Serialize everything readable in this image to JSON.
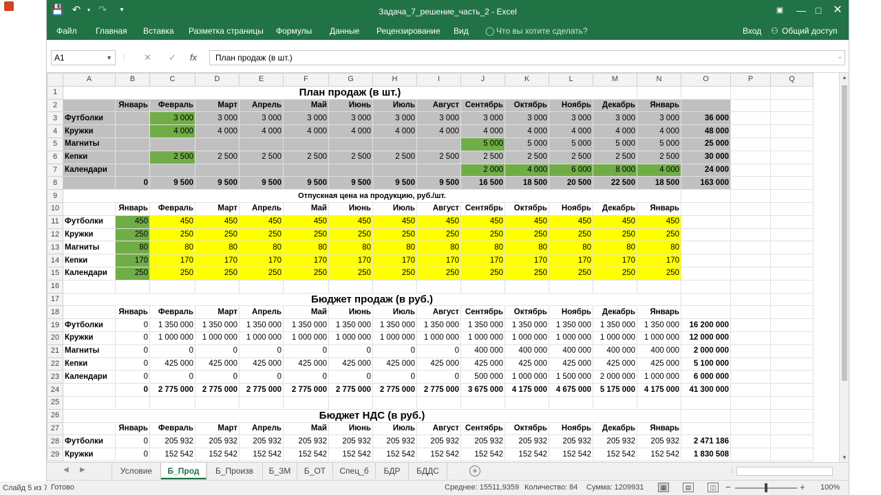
{
  "outer": {
    "slide_status": "Слайд 5 из 7"
  },
  "window": {
    "title": "Задача_7_решение_часть_2 - Excel"
  },
  "ribbon": {
    "tabs": [
      "Файл",
      "Главная",
      "Вставка",
      "Разметка страницы",
      "Формулы",
      "Данные",
      "Рецензирование",
      "Вид"
    ],
    "tell_me": "Что вы хотите сделать?",
    "signin": "Вход",
    "share": "Общий доступ"
  },
  "formula_bar": {
    "name_box": "A1",
    "fx": "fx",
    "content": "План продаж (в шт.)"
  },
  "grid": {
    "columns": [
      "A",
      "B",
      "C",
      "D",
      "E",
      "F",
      "G",
      "H",
      "I",
      "J",
      "K",
      "L",
      "M",
      "N",
      "O",
      "P",
      "Q"
    ],
    "row_numbers": [
      "1",
      "2",
      "3",
      "4",
      "5",
      "6",
      "7",
      "8",
      "9",
      "10",
      "11",
      "12",
      "13",
      "14",
      "15",
      "16",
      "17",
      "18",
      "19",
      "20",
      "21",
      "22",
      "23",
      "24",
      "25",
      "26",
      "27",
      "28",
      "29"
    ],
    "months": [
      "Январь",
      "Февраль",
      "Март",
      "Апрель",
      "Май",
      "Июнь",
      "Июль",
      "Август",
      "Сентябрь",
      "Октябрь",
      "Ноябрь",
      "Декабрь",
      "Январь"
    ],
    "products": [
      "Футболки",
      "Кружки",
      "Магниты",
      "Кепки",
      "Календари"
    ],
    "plan": {
      "title": "План продаж (в шт.)",
      "rows": [
        [
          "",
          "3 000",
          "3 000",
          "3 000",
          "3 000",
          "3 000",
          "3 000",
          "3 000",
          "3 000",
          "3 000",
          "3 000",
          "3 000",
          "3 000",
          "36 000"
        ],
        [
          "",
          "4 000",
          "4 000",
          "4 000",
          "4 000",
          "4 000",
          "4 000",
          "4 000",
          "4 000",
          "4 000",
          "4 000",
          "4 000",
          "4 000",
          "48 000"
        ],
        [
          "",
          "",
          "",
          "",
          "",
          "",
          "",
          "",
          "5 000",
          "5 000",
          "5 000",
          "5 000",
          "5 000",
          "25 000"
        ],
        [
          "",
          "2 500",
          "2 500",
          "2 500",
          "2 500",
          "2 500",
          "2 500",
          "2 500",
          "2 500",
          "2 500",
          "2 500",
          "2 500",
          "2 500",
          "30 000"
        ],
        [
          "",
          "",
          "",
          "",
          "",
          "",
          "",
          "",
          "2 000",
          "4 000",
          "6 000",
          "8 000",
          "4 000",
          "24 000"
        ]
      ],
      "totals": [
        "0",
        "9 500",
        "9 500",
        "9 500",
        "9 500",
        "9 500",
        "9 500",
        "9 500",
        "16 500",
        "18 500",
        "20 500",
        "22 500",
        "18 500",
        "163 000"
      ]
    },
    "price": {
      "title": "Отпускная цена на продукцию, руб./шт.",
      "rows": [
        [
          "450",
          "450",
          "450",
          "450",
          "450",
          "450",
          "450",
          "450",
          "450",
          "450",
          "450",
          "450",
          "450"
        ],
        [
          "250",
          "250",
          "250",
          "250",
          "250",
          "250",
          "250",
          "250",
          "250",
          "250",
          "250",
          "250",
          "250"
        ],
        [
          "80",
          "80",
          "80",
          "80",
          "80",
          "80",
          "80",
          "80",
          "80",
          "80",
          "80",
          "80",
          "80"
        ],
        [
          "170",
          "170",
          "170",
          "170",
          "170",
          "170",
          "170",
          "170",
          "170",
          "170",
          "170",
          "170",
          "170"
        ],
        [
          "250",
          "250",
          "250",
          "250",
          "250",
          "250",
          "250",
          "250",
          "250",
          "250",
          "250",
          "250",
          "250"
        ]
      ]
    },
    "budget": {
      "title": "Бюджет продаж (в руб.)",
      "rows": [
        [
          "0",
          "1 350 000",
          "1 350 000",
          "1 350 000",
          "1 350 000",
          "1 350 000",
          "1 350 000",
          "1 350 000",
          "1 350 000",
          "1 350 000",
          "1 350 000",
          "1 350 000",
          "1 350 000",
          "16 200 000"
        ],
        [
          "0",
          "1 000 000",
          "1 000 000",
          "1 000 000",
          "1 000 000",
          "1 000 000",
          "1 000 000",
          "1 000 000",
          "1 000 000",
          "1 000 000",
          "1 000 000",
          "1 000 000",
          "1 000 000",
          "12 000 000"
        ],
        [
          "0",
          "0",
          "0",
          "0",
          "0",
          "0",
          "0",
          "0",
          "400 000",
          "400 000",
          "400 000",
          "400 000",
          "400 000",
          "2 000 000"
        ],
        [
          "0",
          "425 000",
          "425 000",
          "425 000",
          "425 000",
          "425 000",
          "425 000",
          "425 000",
          "425 000",
          "425 000",
          "425 000",
          "425 000",
          "425 000",
          "5 100 000"
        ],
        [
          "0",
          "0",
          "0",
          "0",
          "0",
          "0",
          "0",
          "0",
          "500 000",
          "1 000 000",
          "1 500 000",
          "2 000 000",
          "1 000 000",
          "6 000 000"
        ]
      ],
      "totals": [
        "0",
        "2 775 000",
        "2 775 000",
        "2 775 000",
        "2 775 000",
        "2 775 000",
        "2 775 000",
        "2 775 000",
        "3 675 000",
        "4 175 000",
        "4 675 000",
        "5 175 000",
        "4 175 000",
        "41 300 000"
      ]
    },
    "vat": {
      "title": "Бюджет НДС (в руб.)",
      "row28": [
        "0",
        "205 932",
        "205 932",
        "205 932",
        "205 932",
        "205 932",
        "205 932",
        "205 932",
        "205 932",
        "205 932",
        "205 932",
        "205 932",
        "205 932",
        "2 471 186"
      ],
      "row29_label": "Кружки",
      "row29": [
        "0",
        "152 542",
        "152 542",
        "152 542",
        "152 542",
        "152 542",
        "152 542",
        "152 542",
        "152 542",
        "152 542",
        "152 542",
        "152 542",
        "152 542",
        "1 830 508"
      ]
    }
  },
  "sheet_tabs": [
    "Условие",
    "Б_Прод",
    "Б_Произв",
    "Б_ЗМ",
    "Б_ОТ",
    "Спец_б",
    "БДР",
    "БДДС"
  ],
  "active_sheet": "Б_Прод",
  "status": {
    "ready": "Готово",
    "average": "Среднее: 15511,9359",
    "count": "Количество: 84",
    "sum": "Сумма: 1209931",
    "zoom": "100%"
  },
  "colors": {
    "excel_green": "#217346",
    "gray_fill": "#c0c0c0",
    "green_fill": "#71ad47",
    "yellow_fill": "#ffff00"
  }
}
